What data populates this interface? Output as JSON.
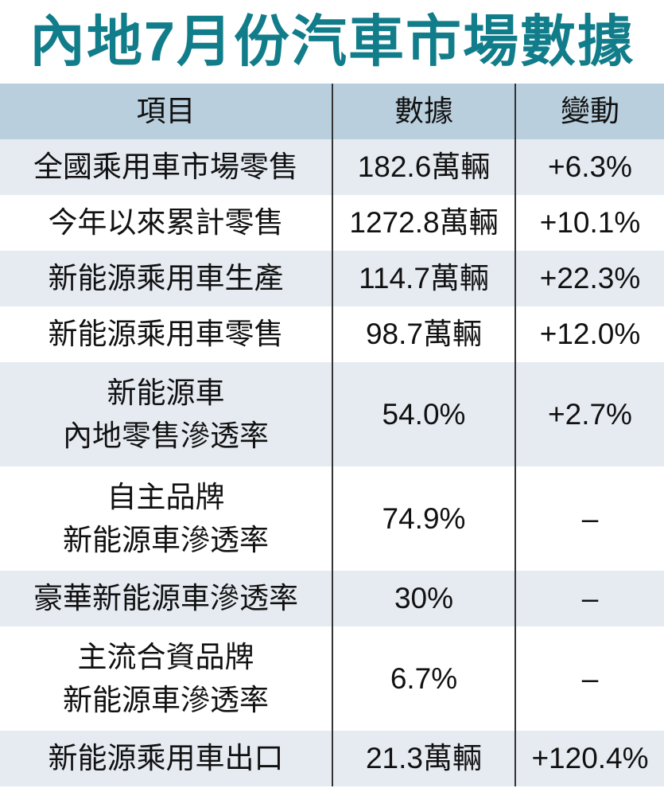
{
  "header": {
    "title": "內地7月份汽車市場數據"
  },
  "table": {
    "columns": [
      "項目",
      "數據",
      "變動"
    ],
    "rows": [
      [
        "全國乘用車市場零售",
        "182.6萬輛",
        "+6.3%"
      ],
      [
        "今年以來累計零售",
        "1272.8萬輛",
        "+10.1%"
      ],
      [
        "新能源乘用車生產",
        "114.7萬輛",
        "+22.3%"
      ],
      [
        "新能源乘用車零售",
        "98.7萬輛",
        "+12.0%"
      ],
      [
        "新能源車\n內地零售滲透率",
        "54.0%",
        "+2.7%"
      ],
      [
        "自主品牌\n新能源車滲透率",
        "74.9%",
        "–"
      ],
      [
        "豪華新能源車滲透率",
        "30%",
        "–"
      ],
      [
        "主流合資品牌\n新能源車滲透率",
        "6.7%",
        "–"
      ],
      [
        "新能源乘用車出口",
        "21.3萬輛",
        "+120.4%"
      ]
    ]
  }
}
